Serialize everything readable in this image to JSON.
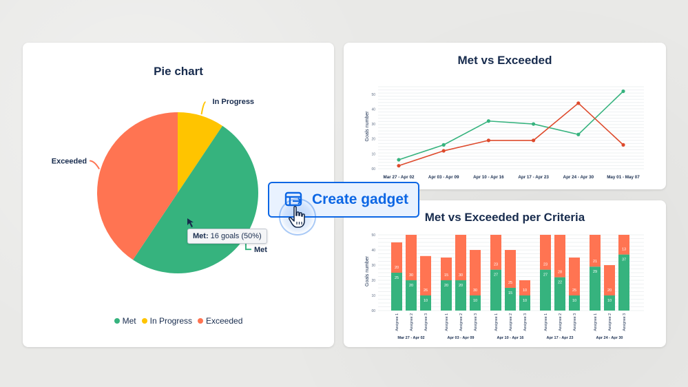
{
  "pie_card": {
    "title": "Pie chart"
  },
  "line_card": {
    "title": "Met vs Exceeded"
  },
  "bar_card": {
    "title": "Met vs Exceeded per Criteria"
  },
  "tooltip": {
    "label": "Met:",
    "value": "16 goals (50%)"
  },
  "create_gadget": {
    "label": "Create gadget"
  },
  "colors": {
    "met": "#36b37e",
    "in_progress": "#ffc400",
    "exceeded": "#ff7452",
    "primary": "#0c66e4"
  },
  "chart_data": [
    {
      "type": "pie",
      "title": "Pie chart",
      "slices": [
        {
          "name": "Met",
          "value": 16
        },
        {
          "name": "In Progress",
          "value": 3
        },
        {
          "name": "Exceeded",
          "value": 13
        }
      ],
      "legend": [
        "Met",
        "In Progress",
        "Exceeded"
      ],
      "legend_position": "bottom"
    },
    {
      "type": "line",
      "title": "Met vs Exceeded",
      "ylabel": "Goals number",
      "categories": [
        "Mar 27 - Apr 02",
        "Apr 03 - Apr 09",
        "Apr 10 - Apr 16",
        "Apr 17 - Apr 23",
        "Apr 24 - Apr 30",
        "May 01 - May 07"
      ],
      "y_ticks": [
        "00",
        "10",
        "20",
        "30",
        "40",
        "50"
      ],
      "ylim": [
        0,
        55
      ],
      "series": [
        {
          "color": "#36b37e",
          "values": [
            6,
            16,
            32,
            30,
            23,
            52
          ]
        },
        {
          "color": "#de4a2c",
          "values": [
            2,
            12,
            19,
            19,
            44,
            16
          ]
        }
      ]
    },
    {
      "type": "bar",
      "title": "Met vs Exceeded per Criteria",
      "ylabel": "Goals number",
      "stacked": true,
      "y_ticks": [
        "00",
        "10",
        "20",
        "30",
        "40",
        "50"
      ],
      "ylim": [
        0,
        50
      ],
      "groups": [
        {
          "label": "Mar 27 - Apr 02",
          "bars": [
            {
              "label": "Assignee 1",
              "met": 25,
              "exceeded": 20
            },
            {
              "label": "Assignee 2",
              "met": 20,
              "exceeded": 30
            },
            {
              "label": "Assignee 3",
              "met": 10,
              "exceeded": 26
            }
          ]
        },
        {
          "label": "Apr 03 - Apr 09",
          "bars": [
            {
              "label": "Assignee 1",
              "met": 20,
              "exceeded": 15
            },
            {
              "label": "Assignee 2",
              "met": 20,
              "exceeded": 30
            },
            {
              "label": "Assignee 3",
              "met": 10,
              "exceeded": 30
            }
          ]
        },
        {
          "label": "Apr 10 - Apr 16",
          "bars": [
            {
              "label": "Assignee 1",
              "met": 27,
              "exceeded": 23
            },
            {
              "label": "Assignee 2",
              "met": 15,
              "exceeded": 25
            },
            {
              "label": "Assignee 3",
              "met": 10,
              "exceeded": 10
            }
          ]
        },
        {
          "label": "Apr 17 - Apr 23",
          "bars": [
            {
              "label": "Assignee 1",
              "met": 27,
              "exceeded": 23
            },
            {
              "label": "Assignee 2",
              "met": 22,
              "exceeded": 28
            },
            {
              "label": "Assignee 3",
              "met": 10,
              "exceeded": 25
            }
          ]
        },
        {
          "label": "Apr 24 - Apr 30",
          "bars": [
            {
              "label": "Assignee 1",
              "met": 29,
              "exceeded": 21
            },
            {
              "label": "Assignee 2",
              "met": 10,
              "exceeded": 20
            },
            {
              "label": "Assignee 3",
              "met": 37,
              "exceeded": 13
            }
          ]
        }
      ]
    }
  ]
}
